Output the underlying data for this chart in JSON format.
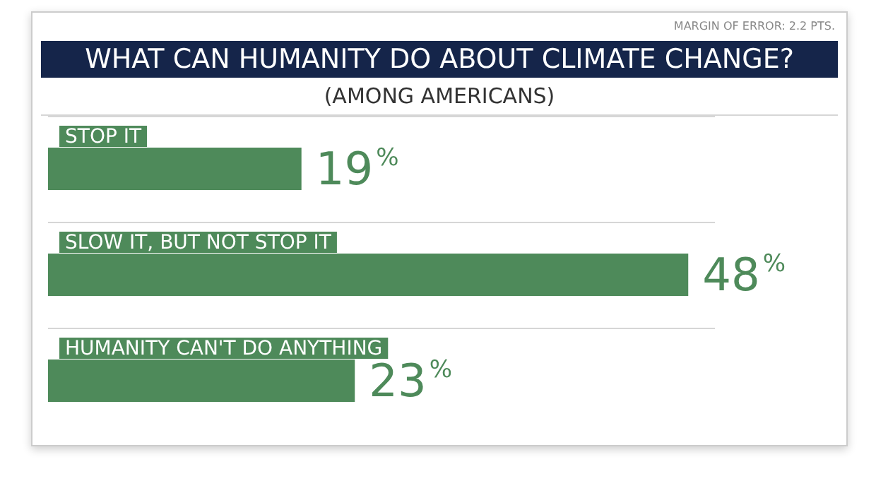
{
  "chart_data": {
    "type": "bar",
    "orientation": "horizontal",
    "title": "WHAT CAN HUMANITY DO ABOUT CLIMATE CHANGE?",
    "subtitle": "(AMONG AMERICANS)",
    "annotations": [
      "MARGIN OF ERROR: 2.2 PTS."
    ],
    "categories": [
      "STOP IT",
      "SLOW IT, BUT NOT STOP IT",
      "HUMANITY CAN'T DO ANYTHING"
    ],
    "values": [
      19,
      48,
      23
    ],
    "value_labels": [
      "19%",
      "48%",
      "23%"
    ],
    "color": "#4e8a5a"
  }
}
